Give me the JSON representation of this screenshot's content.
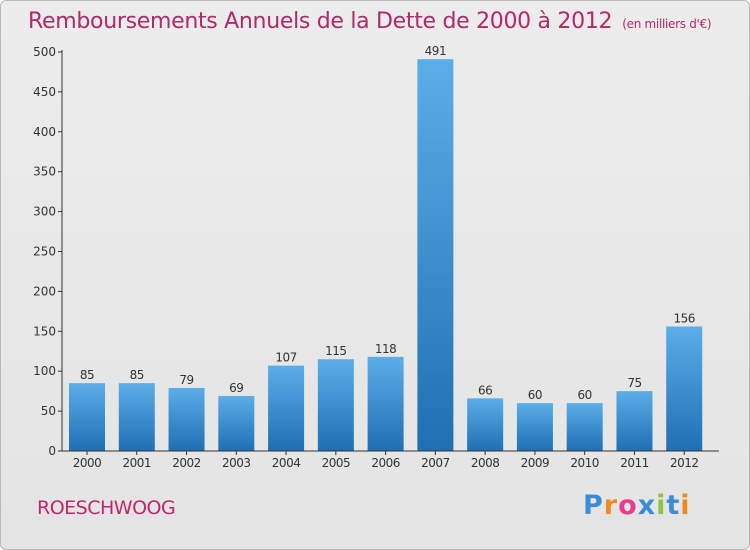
{
  "title": "Remboursements Annuels de la Dette de 2000 à 2012",
  "unit_note": "(en milliers d'€)",
  "commune": "ROESCHWOOG",
  "logo": {
    "text": "Proxiti",
    "colors": [
      "#3a8dd4",
      "#f08a1c",
      "#e53d8b",
      "#3a8dd4",
      "#8cc63f",
      "#3a8dd4",
      "#f08a1c"
    ]
  },
  "chart_data": {
    "type": "bar",
    "categories": [
      "2000",
      "2001",
      "2002",
      "2003",
      "2004",
      "2005",
      "2006",
      "2007",
      "2008",
      "2009",
      "2010",
      "2011",
      "2012"
    ],
    "values": [
      85,
      85,
      79,
      69,
      107,
      115,
      118,
      491,
      66,
      60,
      60,
      75,
      156
    ],
    "ylim": [
      0,
      500
    ],
    "yticks": [
      0,
      50,
      100,
      150,
      200,
      250,
      300,
      350,
      400,
      450,
      500
    ],
    "grid": false,
    "bar_color_top": "#5baee8",
    "bar_color_bottom": "#1f6fb4"
  }
}
